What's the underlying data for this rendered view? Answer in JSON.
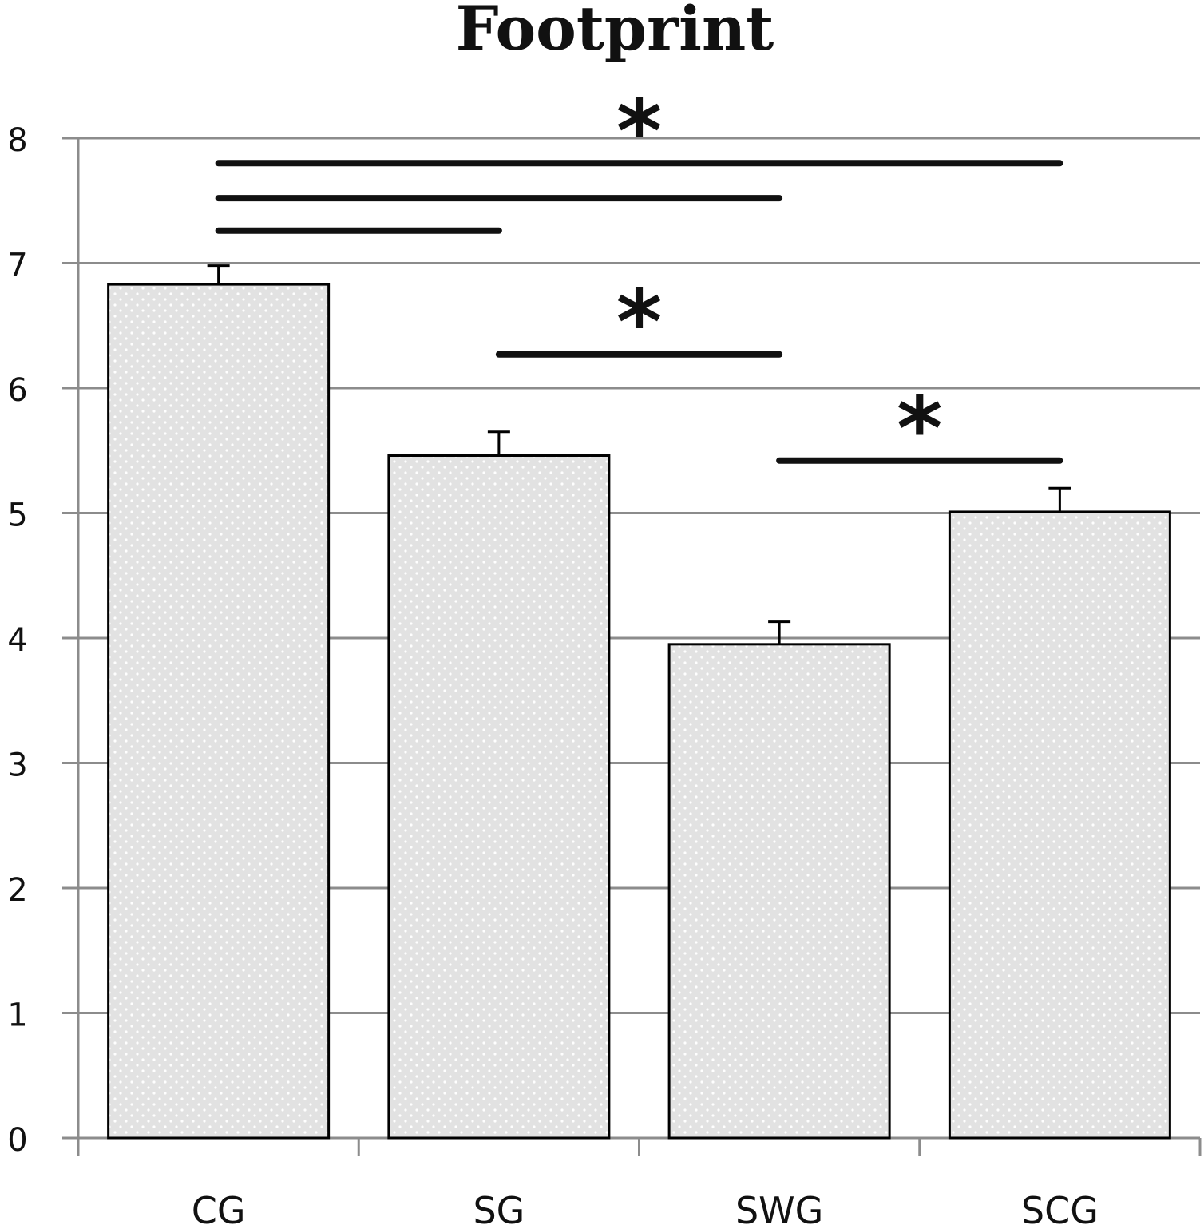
{
  "chart_data": {
    "type": "bar",
    "title": "Footprint",
    "xlabel": "",
    "ylabel": "",
    "categories": [
      "CG",
      "SG",
      "SWG",
      "SCG"
    ],
    "values": [
      6.83,
      5.46,
      3.95,
      5.01
    ],
    "errors": [
      0.15,
      0.19,
      0.18,
      0.19
    ],
    "ylim": [
      0,
      8
    ],
    "yticks": [
      "0",
      "1",
      "2",
      "3",
      "4",
      "5",
      "6",
      "7",
      "8"
    ],
    "grid": true,
    "significance": [
      {
        "from": "CG",
        "to": "SCG",
        "y": 7.8,
        "label": "*"
      },
      {
        "from": "CG",
        "to": "SWG",
        "y": 7.52,
        "label": ""
      },
      {
        "from": "CG",
        "to": "SG",
        "y": 7.26,
        "label": ""
      },
      {
        "from": "SG",
        "to": "SWG",
        "y": 6.27,
        "label": "*"
      },
      {
        "from": "SWG",
        "to": "SCG",
        "y": 5.42,
        "label": "*"
      }
    ],
    "colors": {
      "bar_fill": "#e6e6e6",
      "bar_dot": "#ffffff",
      "bar_stroke": "#000000",
      "grid": "#8c8c8c"
    }
  }
}
